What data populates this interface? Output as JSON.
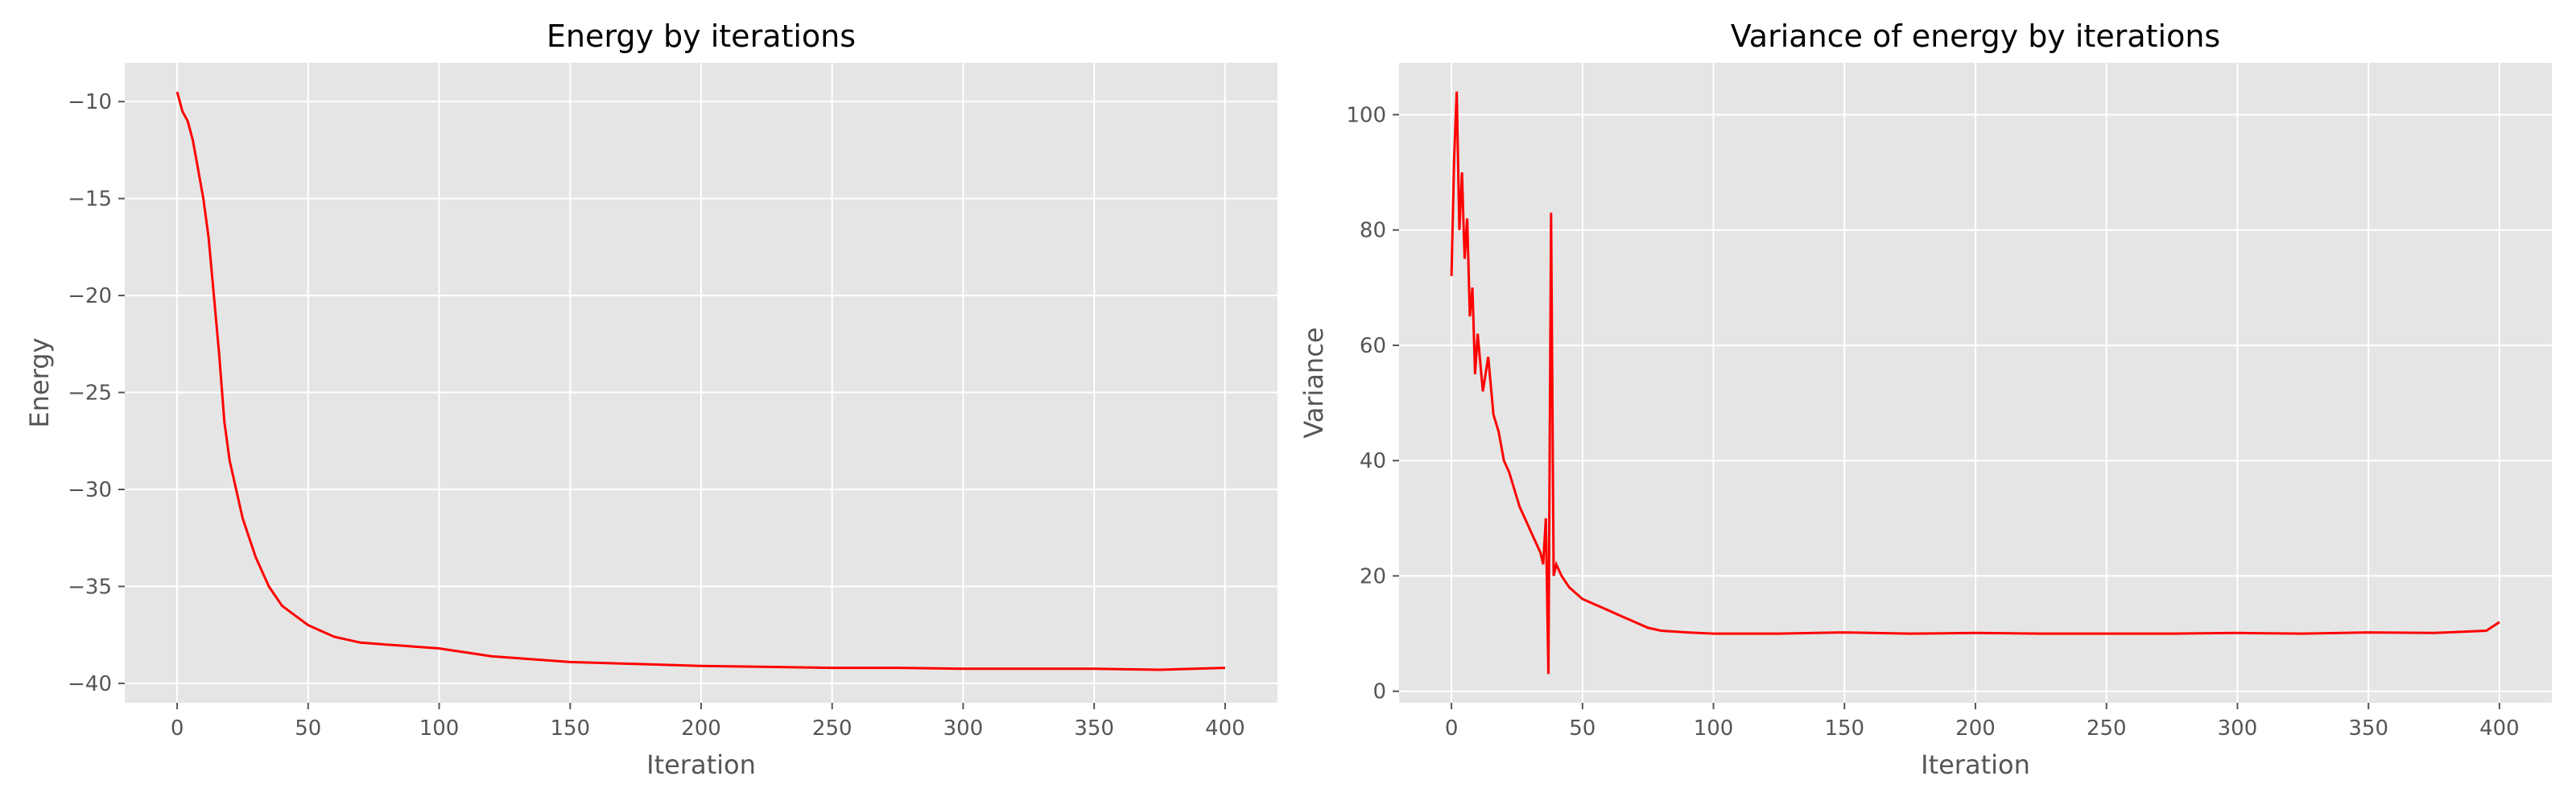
{
  "chart_data": [
    {
      "type": "line",
      "title": "Energy by iterations",
      "xlabel": "Iteration",
      "ylabel": "Energy",
      "xlim": [
        -20,
        420
      ],
      "ylim": [
        -41,
        -8
      ],
      "xticks": [
        0,
        50,
        100,
        150,
        200,
        250,
        300,
        350,
        400
      ],
      "yticks": [
        -40,
        -35,
        -30,
        -25,
        -20,
        -15,
        -10
      ],
      "xtick_labels": [
        "0",
        "50",
        "100",
        "150",
        "200",
        "250",
        "300",
        "350",
        "400"
      ],
      "ytick_labels": [
        "−40",
        "−35",
        "−30",
        "−25",
        "−20",
        "−15",
        "−10"
      ],
      "grid": true,
      "color": "#ff0000",
      "series": [
        {
          "x": [
            0,
            2,
            4,
            6,
            8,
            10,
            12,
            14,
            16,
            18,
            20,
            25,
            30,
            35,
            40,
            45,
            50,
            55,
            60,
            70,
            80,
            90,
            100,
            110,
            120,
            130,
            140,
            150,
            175,
            200,
            225,
            250,
            275,
            300,
            325,
            350,
            375,
            400
          ],
          "values": [
            -9.5,
            -10.5,
            -11.0,
            -12.0,
            -13.5,
            -15.0,
            -17.0,
            -20.0,
            -23.0,
            -26.5,
            -28.5,
            -31.5,
            -33.5,
            -35.0,
            -36.0,
            -36.5,
            -37.0,
            -37.3,
            -37.6,
            -37.9,
            -38.0,
            -38.1,
            -38.2,
            -38.4,
            -38.6,
            -38.7,
            -38.8,
            -38.9,
            -39.0,
            -39.1,
            -39.15,
            -39.2,
            -39.2,
            -39.25,
            -39.25,
            -39.25,
            -39.3,
            -39.2
          ]
        }
      ]
    },
    {
      "type": "line",
      "title": "Variance of energy by iterations",
      "xlabel": "Iteration",
      "ylabel": "Variance",
      "xlim": [
        -20,
        420
      ],
      "ylim": [
        -2,
        109
      ],
      "xticks": [
        0,
        50,
        100,
        150,
        200,
        250,
        300,
        350,
        400
      ],
      "yticks": [
        0,
        20,
        40,
        60,
        80,
        100
      ],
      "xtick_labels": [
        "0",
        "50",
        "100",
        "150",
        "200",
        "250",
        "300",
        "350",
        "400"
      ],
      "ytick_labels": [
        "0",
        "20",
        "40",
        "60",
        "80",
        "100"
      ],
      "grid": true,
      "color": "#ff0000",
      "series": [
        {
          "x": [
            0,
            1,
            2,
            3,
            4,
            5,
            6,
            7,
            8,
            9,
            10,
            12,
            14,
            16,
            18,
            20,
            22,
            24,
            26,
            28,
            30,
            32,
            34,
            35,
            36,
            37,
            38,
            39,
            40,
            42,
            45,
            50,
            55,
            60,
            65,
            70,
            75,
            80,
            90,
            100,
            125,
            150,
            175,
            200,
            225,
            250,
            275,
            300,
            325,
            350,
            375,
            395,
            400
          ],
          "values": [
            72,
            92,
            104,
            80,
            90,
            75,
            82,
            65,
            70,
            55,
            62,
            52,
            58,
            48,
            45,
            40,
            38,
            35,
            32,
            30,
            28,
            26,
            24,
            22,
            30,
            3,
            83,
            20,
            22,
            20,
            18,
            16,
            15,
            14,
            13,
            12,
            11,
            10.5,
            10.2,
            10,
            10,
            10.2,
            10,
            10.1,
            10,
            10,
            10,
            10.1,
            10,
            10.2,
            10.1,
            10.5,
            12
          ]
        }
      ]
    }
  ]
}
